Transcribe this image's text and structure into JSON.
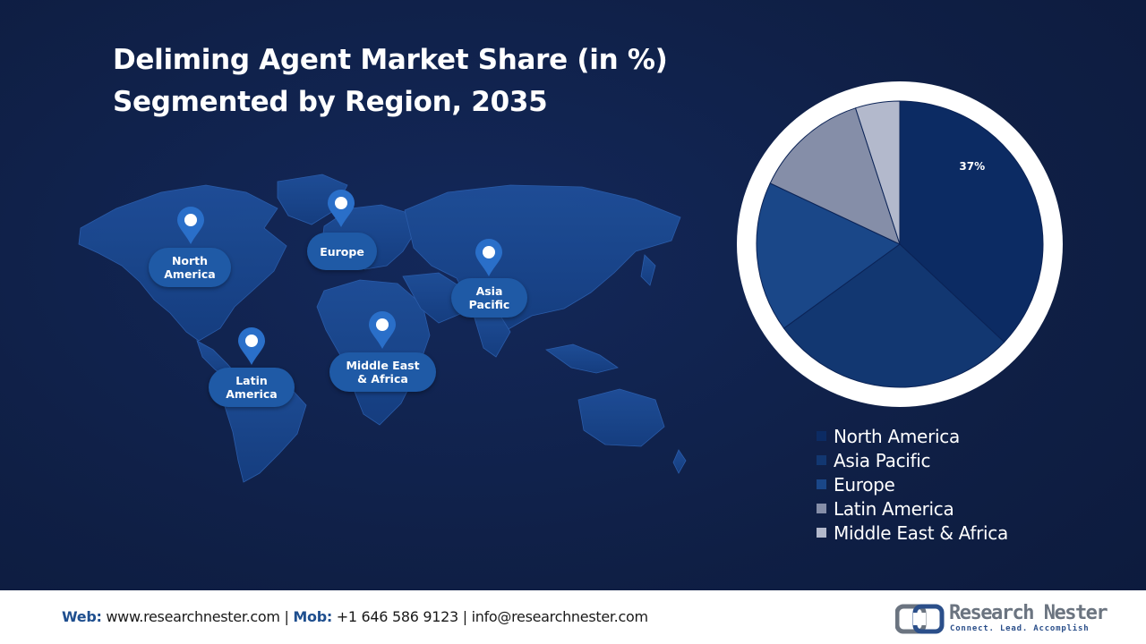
{
  "title": {
    "line1": "Deliming Agent Market Share (in %)",
    "line2": "Segmented by Region, 2035"
  },
  "map_labels": {
    "north_america": [
      "North",
      "America"
    ],
    "europe": [
      "Europe"
    ],
    "asia_pacific": [
      "Asia",
      "Pacific"
    ],
    "latin_america": [
      "Latin",
      "America"
    ],
    "middle_east_africa": [
      "Middle East",
      "& Africa"
    ]
  },
  "chart_data": {
    "type": "pie",
    "categories": [
      "North America",
      "Asia Pacific",
      "Europe",
      "Latin America",
      "Middle East & Africa"
    ],
    "values": [
      37,
      28,
      17,
      13,
      5
    ],
    "colors": [
      "#0c2b63",
      "#123771",
      "#1a4788",
      "#858ea8",
      "#b3b9cc"
    ],
    "data_labels": [
      "37%",
      "",
      "",
      "",
      ""
    ],
    "legend_position": "bottom-right"
  },
  "footer": {
    "web_label": "Web:",
    "web_value": "www.researchnester.com",
    "sep1": "|",
    "mob_label": "Mob:",
    "mob_value": "+1 646 586 9123",
    "sep2": "|",
    "email": "info@researchnester.com"
  },
  "logo": {
    "name": "Research Nester",
    "tagline": "Connect. Lead. Accomplish"
  }
}
